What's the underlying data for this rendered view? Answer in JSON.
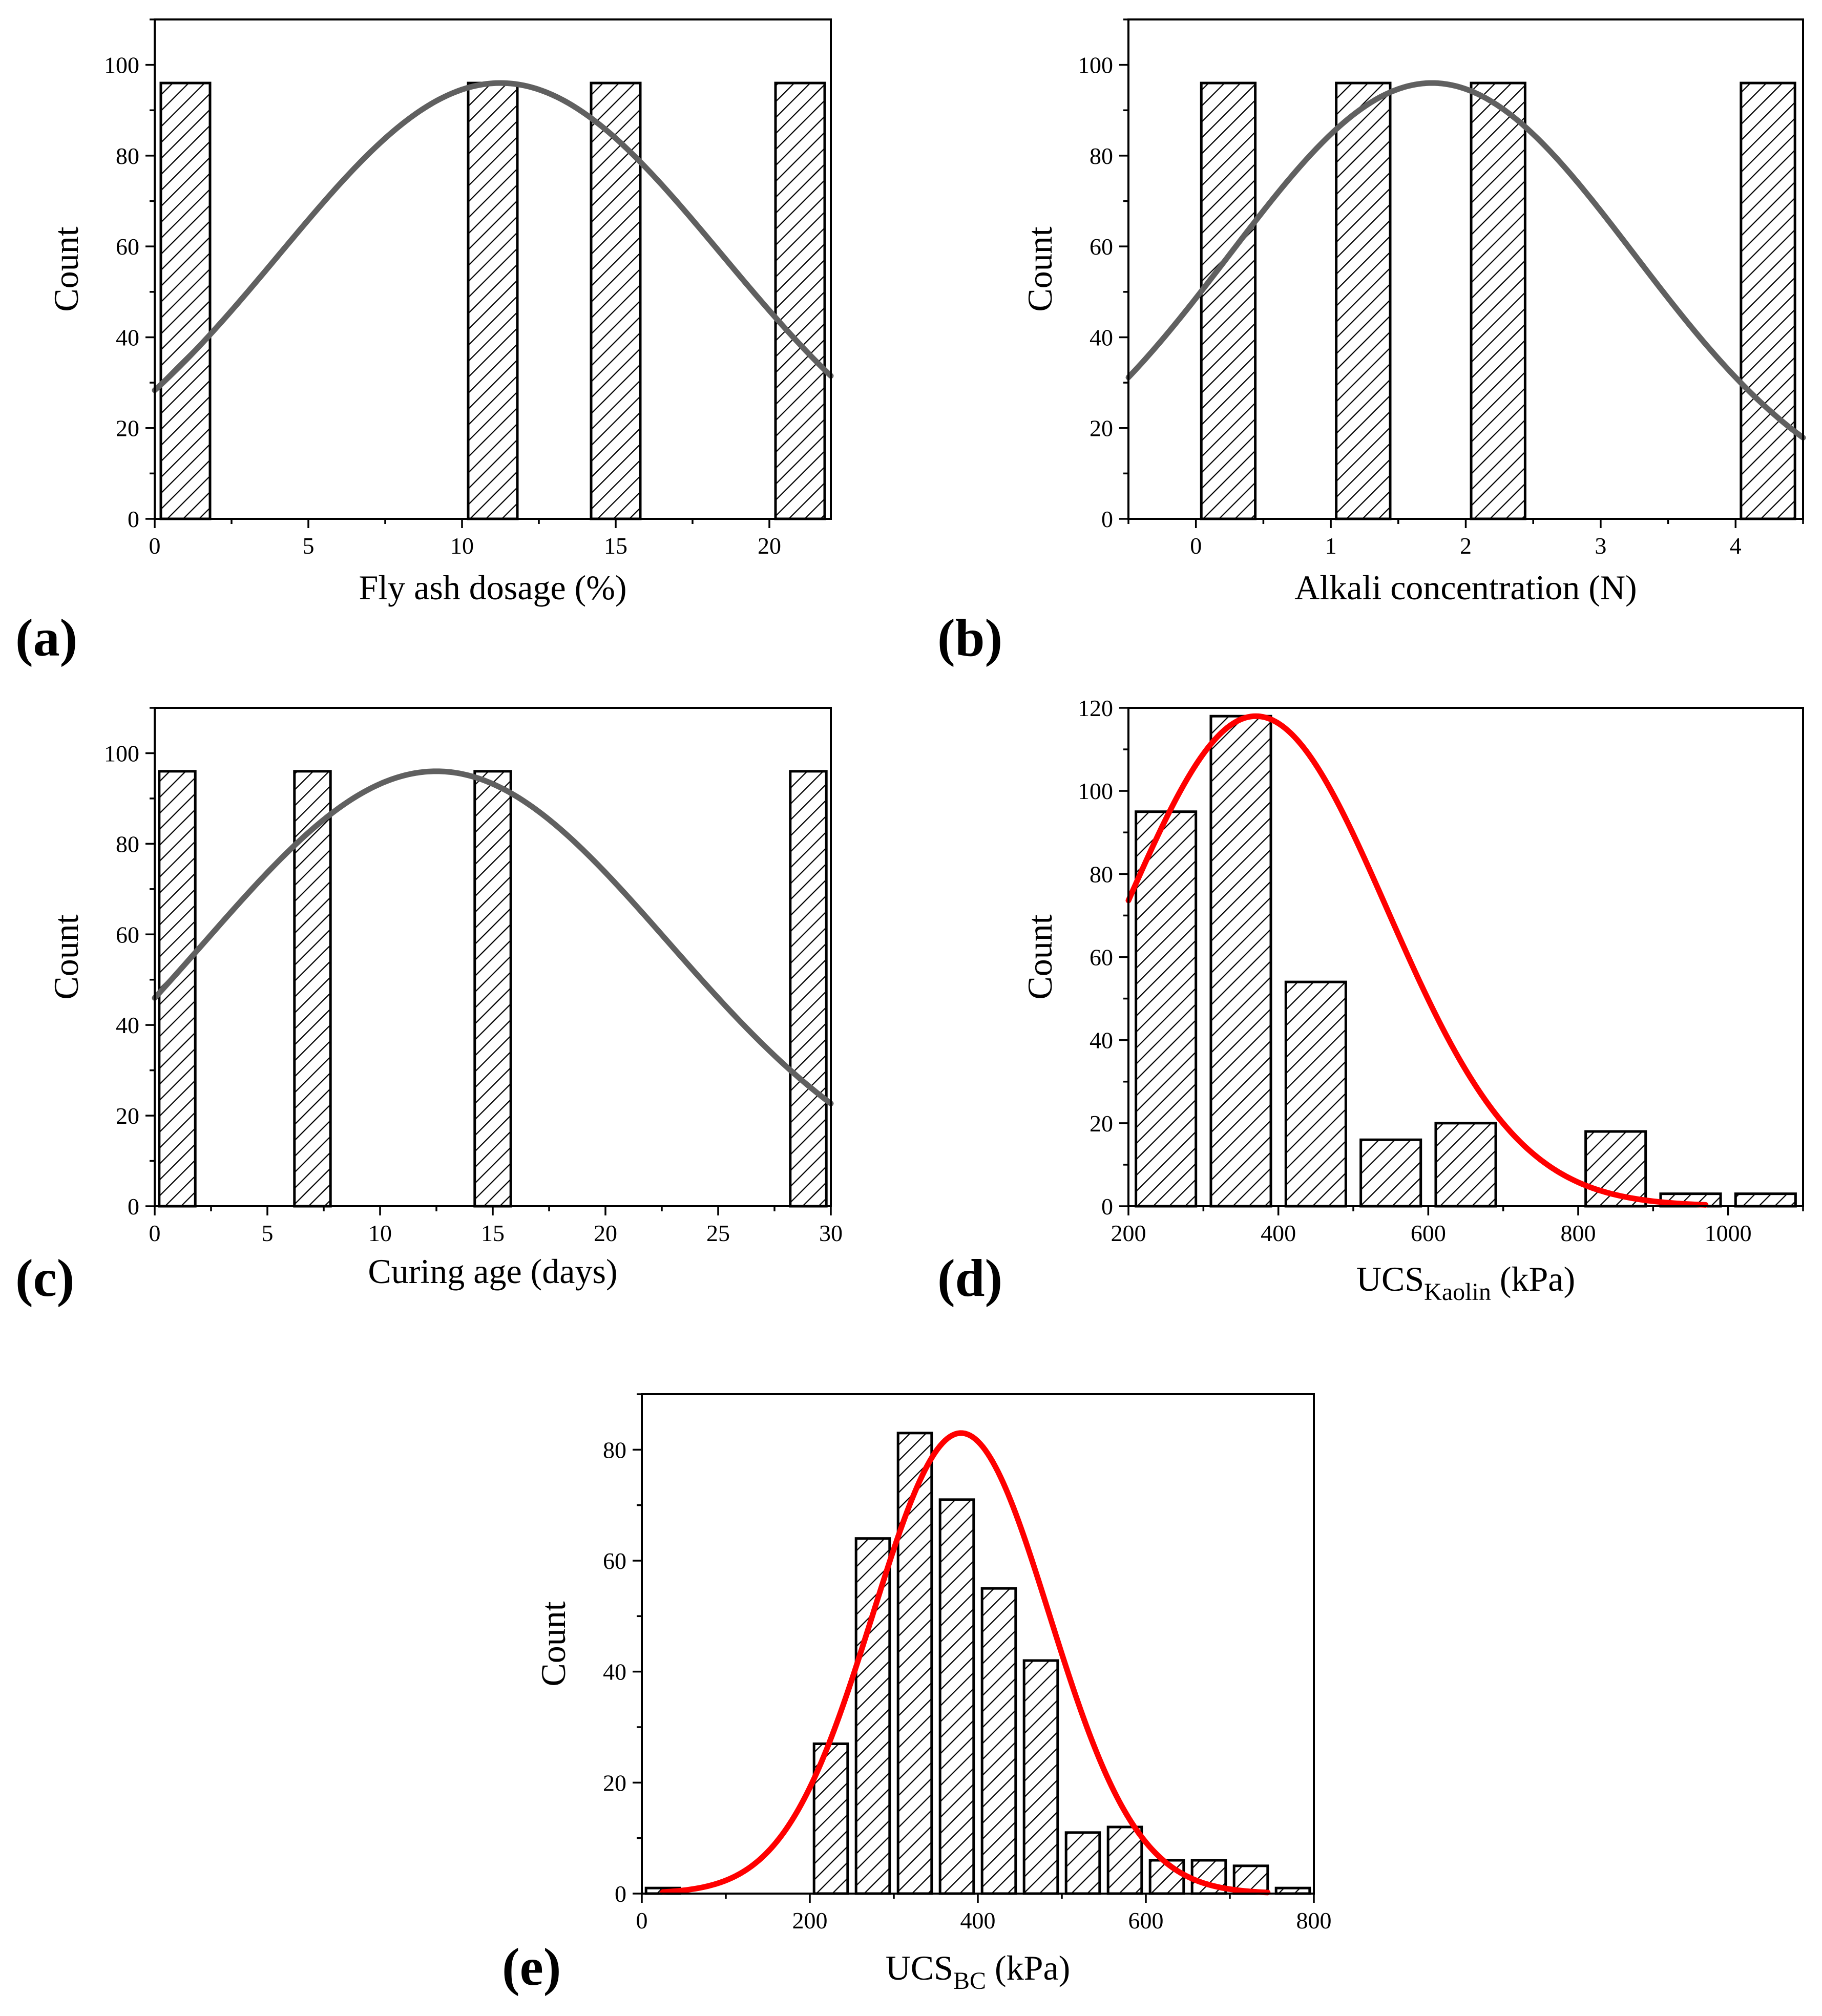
{
  "chart_data": [
    {
      "type": "histogram",
      "panel_label": "(a)",
      "xlabel": "Fly ash dosage (%)",
      "xlabel_sub": "",
      "xlabel_suffix": "",
      "ylabel": "Count",
      "xlim": [
        0,
        22
      ],
      "ylim": [
        0,
        110
      ],
      "xticks": [
        0,
        5,
        10,
        15,
        20
      ],
      "yticks": [
        0,
        20,
        40,
        60,
        80,
        100
      ],
      "bars": [
        {
          "x0": 0.2,
          "x1": 1.8,
          "count": 96
        },
        {
          "x0": 10.2,
          "x1": 11.8,
          "count": 96
        },
        {
          "x0": 14.2,
          "x1": 15.8,
          "count": 96
        },
        {
          "x0": 20.2,
          "x1": 21.8,
          "count": 96
        }
      ],
      "fit_curve": {
        "kind": "normal",
        "mean": 11.25,
        "sd": 7.2,
        "peak": 96,
        "x_range": [
          0,
          22
        ],
        "color": "#606060"
      }
    },
    {
      "type": "histogram",
      "panel_label": "(b)",
      "xlabel": "Alkali concentration (N)",
      "xlabel_sub": "",
      "xlabel_suffix": "",
      "ylabel": "Count",
      "xlim": [
        -0.5,
        4.5
      ],
      "ylim": [
        0,
        110
      ],
      "xticks": [
        0,
        1,
        2,
        3,
        4
      ],
      "yticks": [
        0,
        20,
        40,
        60,
        80,
        100
      ],
      "bars": [
        {
          "x0": 0.04,
          "x1": 0.44,
          "count": 96
        },
        {
          "x0": 1.04,
          "x1": 1.44,
          "count": 96
        },
        {
          "x0": 2.04,
          "x1": 2.44,
          "count": 96
        },
        {
          "x0": 4.04,
          "x1": 4.44,
          "count": 96
        }
      ],
      "fit_curve": {
        "kind": "normal",
        "mean": 1.75,
        "sd": 1.5,
        "peak": 96,
        "x_range": [
          -0.5,
          4.5
        ],
        "color": "#606060"
      }
    },
    {
      "type": "histogram",
      "panel_label": "(c)",
      "xlabel": "Curing age (days)",
      "xlabel_sub": "",
      "xlabel_suffix": "",
      "ylabel": "Count",
      "xlim": [
        0,
        30
      ],
      "ylim": [
        0,
        110
      ],
      "xticks": [
        0,
        5,
        10,
        15,
        20,
        25,
        30
      ],
      "yticks": [
        0,
        20,
        40,
        60,
        80,
        100
      ],
      "bars": [
        {
          "x0": 0.2,
          "x1": 1.8,
          "count": 96
        },
        {
          "x0": 6.2,
          "x1": 7.8,
          "count": 96
        },
        {
          "x0": 14.2,
          "x1": 15.8,
          "count": 96
        },
        {
          "x0": 28.2,
          "x1": 29.8,
          "count": 96
        }
      ],
      "fit_curve": {
        "kind": "normal",
        "mean": 12.5,
        "sd": 10.3,
        "peak": 96,
        "x_range": [
          0,
          30
        ],
        "color": "#606060"
      }
    },
    {
      "type": "histogram",
      "panel_label": "(d)",
      "xlabel": "UCS",
      "xlabel_sub": "Kaolin",
      "xlabel_suffix": " (kPa)",
      "ylabel": "Count",
      "xlim": [
        200,
        1100
      ],
      "ylim": [
        0,
        120
      ],
      "xticks": [
        200,
        400,
        600,
        800,
        1000
      ],
      "yticks": [
        0,
        20,
        40,
        60,
        80,
        100,
        120
      ],
      "bars": [
        {
          "x0": 210,
          "x1": 290,
          "count": 95
        },
        {
          "x0": 310,
          "x1": 390,
          "count": 118
        },
        {
          "x0": 410,
          "x1": 490,
          "count": 54
        },
        {
          "x0": 510,
          "x1": 590,
          "count": 16
        },
        {
          "x0": 610,
          "x1": 690,
          "count": 20
        },
        {
          "x0": 810,
          "x1": 890,
          "count": 18
        },
        {
          "x0": 910,
          "x1": 990,
          "count": 3
        },
        {
          "x0": 1010,
          "x1": 1090,
          "count": 3
        }
      ],
      "fit_curve": {
        "kind": "normal",
        "mean": 370,
        "sd": 175,
        "peak": 118,
        "x_range": [
          200,
          970
        ],
        "color": "#ff0000"
      }
    },
    {
      "type": "histogram",
      "panel_label": "(e)",
      "xlabel": "UCS",
      "xlabel_sub": "BC",
      "xlabel_suffix": " (kPa)",
      "ylabel": "Count",
      "xlim": [
        0,
        800
      ],
      "ylim": [
        0,
        90
      ],
      "xticks": [
        0,
        200,
        400,
        600,
        800
      ],
      "yticks": [
        0,
        20,
        40,
        60,
        80
      ],
      "bars": [
        {
          "x0": 5,
          "x1": 45,
          "count": 1
        },
        {
          "x0": 205,
          "x1": 245,
          "count": 27
        },
        {
          "x0": 255,
          "x1": 295,
          "count": 64
        },
        {
          "x0": 305,
          "x1": 345,
          "count": 83
        },
        {
          "x0": 355,
          "x1": 395,
          "count": 71
        },
        {
          "x0": 405,
          "x1": 445,
          "count": 55
        },
        {
          "x0": 455,
          "x1": 495,
          "count": 42
        },
        {
          "x0": 505,
          "x1": 545,
          "count": 11
        },
        {
          "x0": 555,
          "x1": 595,
          "count": 12
        },
        {
          "x0": 605,
          "x1": 645,
          "count": 6
        },
        {
          "x0": 655,
          "x1": 695,
          "count": 6
        },
        {
          "x0": 705,
          "x1": 745,
          "count": 5
        },
        {
          "x0": 755,
          "x1": 795,
          "count": 1
        }
      ],
      "fit_curve": {
        "kind": "normal",
        "mean": 380,
        "sd": 105,
        "peak": 83,
        "x_range": [
          25,
          745
        ],
        "color": "#ff0000"
      }
    }
  ]
}
